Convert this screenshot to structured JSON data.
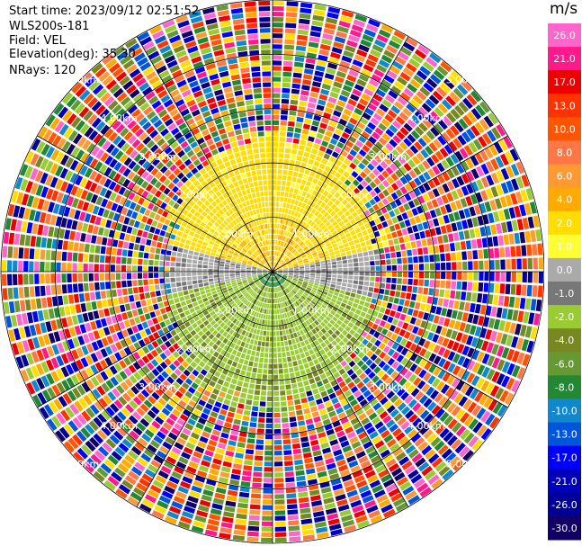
{
  "meta": {
    "start_time": "Start time: 2023/09/12 02:51:52",
    "instrument": "WLS200s-181",
    "field": "Field: VEL",
    "elevation": "Elevation(deg): 35.30",
    "nrays": "NRays: 120"
  },
  "chart_data": {
    "type": "heatmap",
    "projection": "polar-ppi",
    "nrays": 120,
    "range_max_km": 5.0,
    "range_rings_km": [
      "1.00km",
      "2.00km",
      "3.00km",
      "4.00km",
      "5.00km"
    ],
    "colorbar": {
      "unit": "m/s",
      "ticks": [
        "26.0",
        "21.0",
        "17.0",
        "13.0",
        "10.0",
        "8.0",
        "6.0",
        "4.0",
        "2.0",
        "1.0",
        "0.0",
        "-1.0",
        "-2.0",
        "-4.0",
        "-6.0",
        "-8.0",
        "-10.0",
        "-13.0",
        "-17.0",
        "-21.0",
        "-26.0",
        "-30.0"
      ],
      "colors": [
        "#ff66cc",
        "#ff1a8c",
        "#ee0000",
        "#ff3300",
        "#ff5500",
        "#ff7744",
        "#ff9933",
        "#ffaa00",
        "#ffdd00",
        "#ffff33",
        "#aaaaaa",
        "#777777",
        "#99cc33",
        "#778822",
        "#669933",
        "#228833",
        "#1188cc",
        "#0055dd",
        "#0000ff",
        "#0000bb",
        "#000099",
        "#110066"
      ]
    }
  }
}
